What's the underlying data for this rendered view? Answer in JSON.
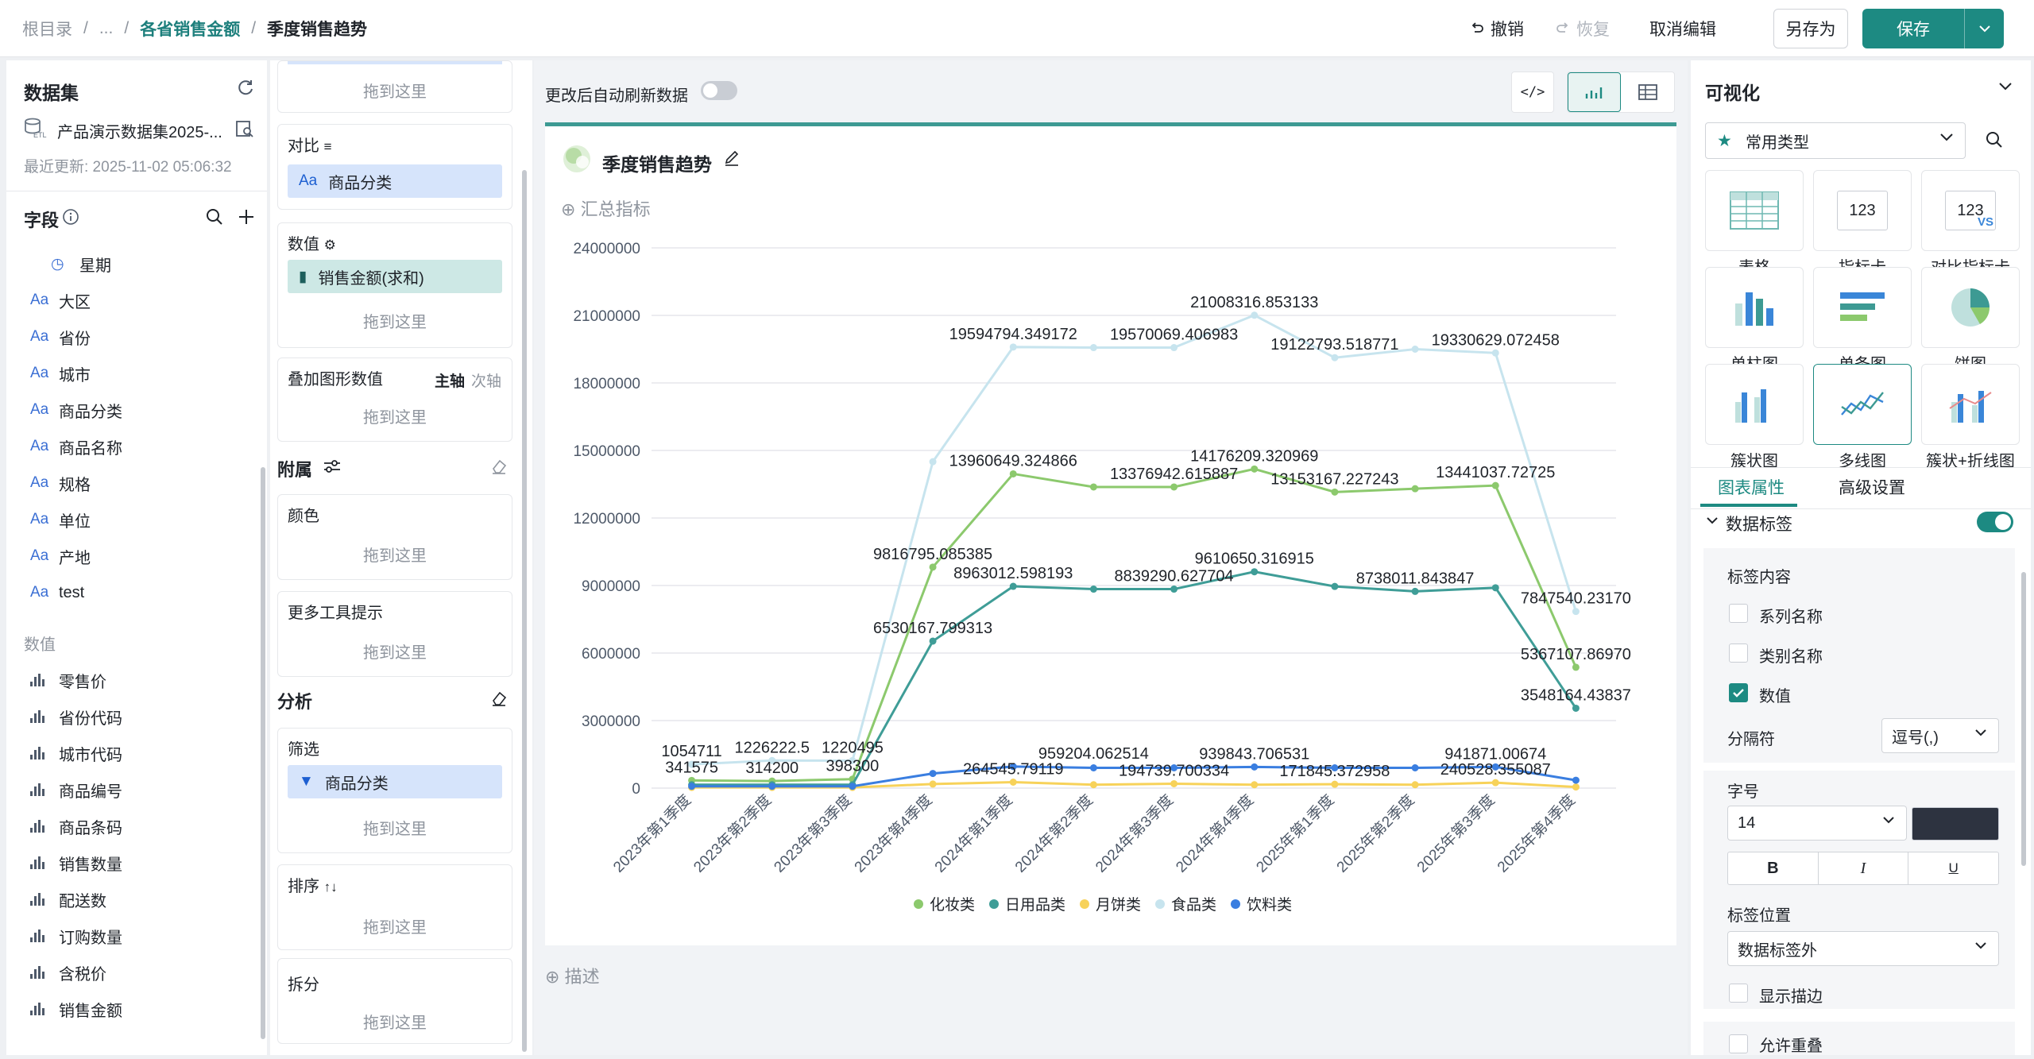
{
  "breadcrumb": {
    "root": "根目录",
    "ellipsis": "...",
    "parent": "各省销售金额",
    "current": "季度销售趋势",
    "sep": "/"
  },
  "toolbar": {
    "undo": "撤销",
    "redo": "恢复",
    "cancel_edit": "取消编辑",
    "save_as": "另存为",
    "save": "保存"
  },
  "dataset": {
    "title": "数据集",
    "name": "产品演示数据集2025-...",
    "updated": "最近更新: 2025-11-02 05:06:32"
  },
  "fields": {
    "title": "字段",
    "dimensions": [
      {
        "icon": "calendar-icon",
        "name": "星期"
      },
      {
        "icon": "Aa",
        "name": "大区"
      },
      {
        "icon": "Aa",
        "name": "省份"
      },
      {
        "icon": "Aa",
        "name": "城市"
      },
      {
        "icon": "Aa",
        "name": "商品分类"
      },
      {
        "icon": "Aa",
        "name": "商品名称"
      },
      {
        "icon": "Aa",
        "name": "规格"
      },
      {
        "icon": "Aa",
        "name": "单位"
      },
      {
        "icon": "Aa",
        "name": "产地"
      },
      {
        "icon": "Aa",
        "name": "test"
      }
    ],
    "measures_title": "数值",
    "measures": [
      "零售价",
      "省份代码",
      "城市代码",
      "商品编号",
      "商品条码",
      "销售数量",
      "配送数",
      "订购数量",
      "含税价",
      "销售金额"
    ]
  },
  "config": {
    "drop_hint": "拖到这里",
    "compare_label": "对比",
    "compare_field": "商品分类",
    "value_label": "数值",
    "value_field": "销售金额(求和)",
    "overlay_label": "叠加图形数值",
    "overlay_primary": "主轴",
    "overlay_secondary": "次轴",
    "attach_title": "附属",
    "color_label": "颜色",
    "tooltip_label": "更多工具提示",
    "analysis_title": "分析",
    "filter_label": "筛选",
    "filter_field": "商品分类",
    "sort_label": "排序",
    "split_label": "拆分"
  },
  "canvas": {
    "auto_refresh": "更改后自动刷新数据",
    "chart_title": "季度销售趋势",
    "summary": "汇总指标",
    "describe": "描述"
  },
  "chart_data": {
    "type": "line",
    "title": "季度销售趋势",
    "categories": [
      "2023年第1季度",
      "2023年第2季度",
      "2023年第3季度",
      "2023年第4季度",
      "2024年第1季度",
      "2024年第2季度",
      "2024年第3季度",
      "2024年第4季度",
      "2025年第1季度",
      "2025年第2季度",
      "2025年第3季度",
      "2025年第4季度"
    ],
    "y_ticks": [
      "0",
      "3000000",
      "6000000",
      "9000000",
      "12000000",
      "15000000",
      "18000000",
      "21000000",
      "24000000"
    ],
    "ylim": [
      0,
      24000000
    ],
    "grid": true,
    "legend_position": "bottom",
    "series": [
      {
        "name": "化妆类",
        "color": "#8cc96d",
        "values": [
          341575,
          314200,
          398300,
          9816795.085385,
          13960649.324866,
          13376942.615887,
          13376942.615887,
          14176209.320969,
          13153167.227243,
          13300000,
          13441037.72725,
          5367107.8697
        ]
      },
      {
        "name": "日用品类",
        "color": "#3f9d97",
        "values": [
          150000,
          150000,
          150000,
          6530167.799313,
          8963012.598193,
          8839290.627704,
          8839290.627704,
          9610650.316915,
          8960000,
          8738011.843847,
          8900000,
          3548164.43837
        ]
      },
      {
        "name": "月饼类",
        "color": "#f7d25a",
        "values": [
          30000,
          30000,
          30000,
          180000,
          264545.79119,
          150000,
          194739.700334,
          150000,
          171845.372958,
          150000,
          240528.355087,
          50000
        ]
      },
      {
        "name": "食品类",
        "color": "#c7e4ee",
        "values": [
          1054711,
          1226222.5,
          1220495,
          14500000,
          19594794.349172,
          19570069.406983,
          19570069.406983,
          21008316.853133,
          19122793.518771,
          19500000,
          19330629.072458,
          7847540.2317
        ]
      },
      {
        "name": "饮料类",
        "color": "#3a7ee0",
        "values": [
          80000,
          80000,
          80000,
          650000,
          959204.062514,
          900000,
          900000,
          939843.706531,
          900000,
          900000,
          941871.00674,
          350000
        ]
      }
    ],
    "data_labels": [
      {
        "text": "1054711",
        "category": 0,
        "value": 1054711
      },
      {
        "text": "341575",
        "category": 0,
        "value": 341575
      },
      {
        "text": "1226222.5",
        "category": 1,
        "value": 1226222.5
      },
      {
        "text": "314200",
        "category": 1,
        "value": 314200
      },
      {
        "text": "1220495",
        "category": 2,
        "value": 1220495
      },
      {
        "text": "398300",
        "category": 2,
        "value": 398300
      },
      {
        "text": "9816795.085385",
        "category": 3,
        "value": 9816795.085385
      },
      {
        "text": "6530167.799313",
        "category": 3,
        "value": 6530167.799313
      },
      {
        "text": "19594794.349172",
        "category": 4,
        "value": 19594794.349172
      },
      {
        "text": "13960649.324866",
        "category": 4,
        "value": 13960649.324866
      },
      {
        "text": "8963012.598193",
        "category": 4,
        "value": 8963012.598193
      },
      {
        "text": "264545.79119",
        "category": 4,
        "value": 264545.79119
      },
      {
        "text": "959204.062514",
        "category": 5,
        "value": 959204.062514
      },
      {
        "text": "19570069.406983",
        "category": 6,
        "value": 19570069.406983
      },
      {
        "text": "13376942.615887",
        "category": 6,
        "value": 13376942.615887
      },
      {
        "text": "8839290.627704",
        "category": 6,
        "value": 8839290.627704
      },
      {
        "text": "194739.700334",
        "category": 6,
        "value": 194739.700334
      },
      {
        "text": "21008316.853133",
        "category": 7,
        "value": 21008316.853133
      },
      {
        "text": "14176209.320969",
        "category": 7,
        "value": 14176209.320969
      },
      {
        "text": "9610650.316915",
        "category": 7,
        "value": 9610650.316915
      },
      {
        "text": "939843.706531",
        "category": 7,
        "value": 939843.706531
      },
      {
        "text": "19122793.518771",
        "category": 8,
        "value": 19122793.518771
      },
      {
        "text": "13153167.227243",
        "category": 8,
        "value": 13153167.227243
      },
      {
        "text": "171845.372958",
        "category": 8,
        "value": 171845.372958
      },
      {
        "text": "8738011.843847",
        "category": 9,
        "value": 8738011.843847
      },
      {
        "text": "19330629.072458",
        "category": 10,
        "value": 19330629.072458
      },
      {
        "text": "13441037.72725",
        "category": 10,
        "value": 13441037.72725
      },
      {
        "text": "941871.00674",
        "category": 10,
        "value": 941871.00674
      },
      {
        "text": "240528.355087",
        "category": 10,
        "value": 240528.355087
      },
      {
        "text": "7847540.23170",
        "category": 11,
        "value": 7847540.2317
      },
      {
        "text": "5367107.86970",
        "category": 11,
        "value": 5367107.8697
      },
      {
        "text": "3548164.43837",
        "category": 11,
        "value": 3548164.43837
      }
    ]
  },
  "visualization": {
    "title": "可视化",
    "type_select": "常用类型",
    "types": [
      {
        "label": "表格",
        "icon": "table-icon"
      },
      {
        "label": "指标卡",
        "icon": "kpi-card-icon",
        "text": "123"
      },
      {
        "label": "对比指标卡",
        "icon": "compare-kpi-icon",
        "text": "123",
        "vs": "VS"
      },
      {
        "label": "单柱图",
        "icon": "column-chart-icon"
      },
      {
        "label": "单条图",
        "icon": "bar-chart-icon"
      },
      {
        "label": "饼图",
        "icon": "pie-chart-icon"
      },
      {
        "label": "簇状图",
        "icon": "cluster-chart-icon"
      },
      {
        "label": "多线图",
        "icon": "multi-line-icon"
      },
      {
        "label": "簇状+折线图",
        "icon": "cluster-line-icon"
      }
    ],
    "tabs": [
      "图表属性",
      "高级设置"
    ],
    "data_labels_title": "数据标签",
    "label_content": "标签内容",
    "opt_series": "系列名称",
    "opt_category": "类别名称",
    "opt_value": "数值",
    "separator_label": "分隔符",
    "separator_value": "逗号(,)",
    "font_size_label": "字号",
    "font_size_value": "14",
    "bold": "B",
    "italic": "I",
    "underline": "U",
    "label_pos_label": "标签位置",
    "label_pos_value": "数据标签外",
    "show_stroke": "显示描边",
    "allow_overlap": "允许重叠",
    "colors": {
      "accent": "#1d8a82",
      "swatch": "#2d3340"
    }
  }
}
